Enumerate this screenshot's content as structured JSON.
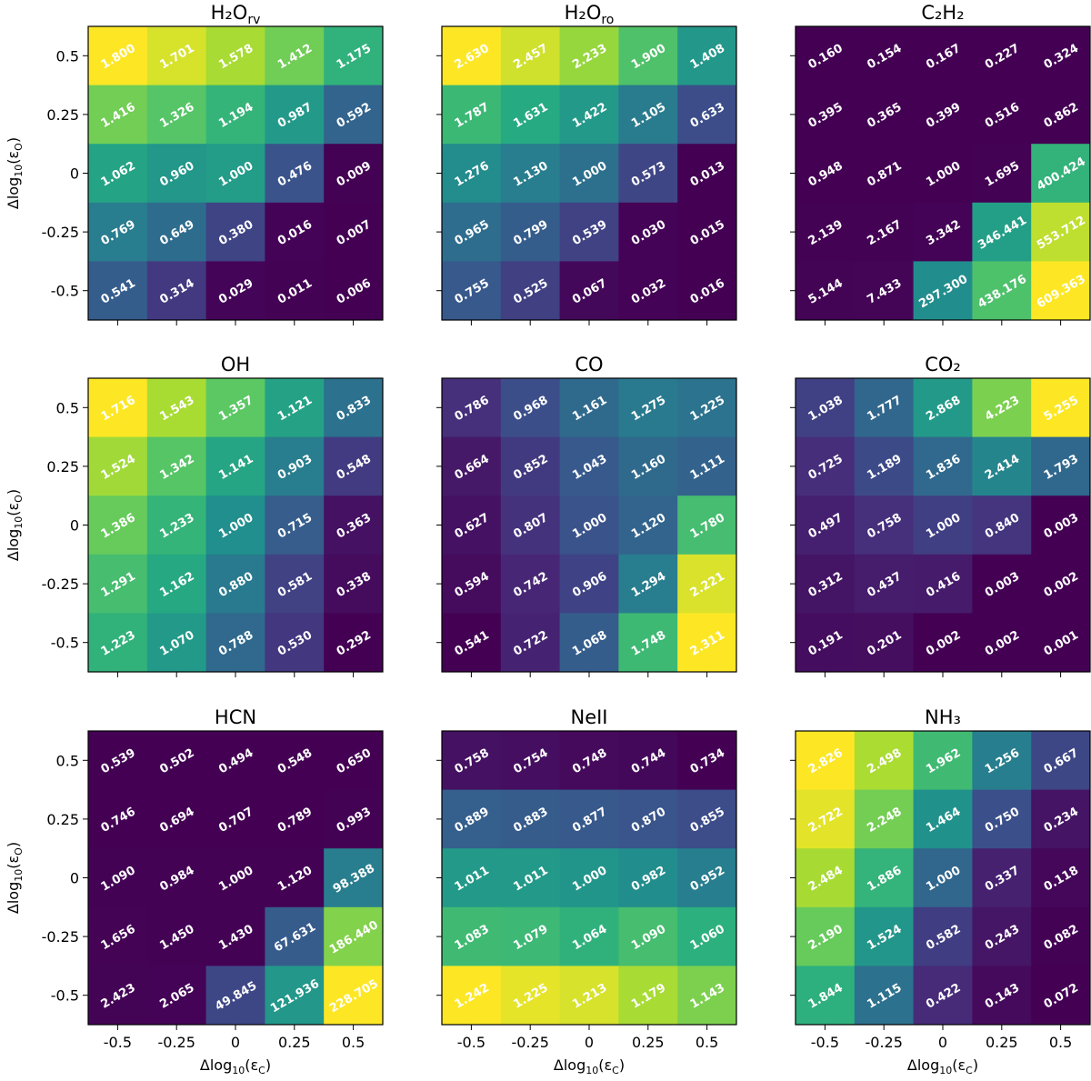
{
  "chart_data": {
    "type": "heatmap",
    "colormap": "viridis",
    "xlabel": "Δlog₁₀(ε_C)",
    "ylabel": "Δlog₁₀(ε_O)",
    "x_categories": [
      "-0.5",
      "-0.25",
      "0",
      "0.25",
      "0.5"
    ],
    "y_categories": [
      "0.5",
      "0.25",
      "0",
      "-0.25",
      "-0.5"
    ],
    "panels": [
      {
        "title": "H₂O",
        "title_sub": "rv",
        "values": [
          [
            "1.800",
            "1.701",
            "1.578",
            "1.412",
            "1.175"
          ],
          [
            "1.416",
            "1.326",
            "1.194",
            "0.987",
            "0.592"
          ],
          [
            "1.062",
            "0.960",
            "1.000",
            "0.476",
            "0.009"
          ],
          [
            "0.769",
            "0.649",
            "0.380",
            "0.016",
            "0.007"
          ],
          [
            "0.541",
            "0.314",
            "0.029",
            "0.011",
            "0.006"
          ]
        ]
      },
      {
        "title": "H₂O",
        "title_sub": "ro",
        "values": [
          [
            "2.630",
            "2.457",
            "2.233",
            "1.900",
            "1.408"
          ],
          [
            "1.787",
            "1.631",
            "1.422",
            "1.105",
            "0.633"
          ],
          [
            "1.276",
            "1.130",
            "1.000",
            "0.573",
            "0.013"
          ],
          [
            "0.965",
            "0.799",
            "0.539",
            "0.030",
            "0.015"
          ],
          [
            "0.755",
            "0.525",
            "0.067",
            "0.032",
            "0.016"
          ]
        ]
      },
      {
        "title": "C₂H₂",
        "title_sub": "",
        "values": [
          [
            "0.160",
            "0.154",
            "0.167",
            "0.227",
            "0.324"
          ],
          [
            "0.395",
            "0.365",
            "0.399",
            "0.516",
            "0.862"
          ],
          [
            "0.948",
            "0.871",
            "1.000",
            "1.695",
            "400.424"
          ],
          [
            "2.139",
            "2.167",
            "3.342",
            "346.441",
            "553.712"
          ],
          [
            "5.144",
            "7.433",
            "297.300",
            "438.176",
            "609.363"
          ]
        ]
      },
      {
        "title": "OH",
        "title_sub": "",
        "values": [
          [
            "1.716",
            "1.543",
            "1.357",
            "1.121",
            "0.833"
          ],
          [
            "1.524",
            "1.342",
            "1.141",
            "0.903",
            "0.548"
          ],
          [
            "1.386",
            "1.233",
            "1.000",
            "0.715",
            "0.363"
          ],
          [
            "1.291",
            "1.162",
            "0.880",
            "0.581",
            "0.338"
          ],
          [
            "1.223",
            "1.070",
            "0.788",
            "0.530",
            "0.292"
          ]
        ]
      },
      {
        "title": "CO",
        "title_sub": "",
        "values": [
          [
            "0.786",
            "0.968",
            "1.161",
            "1.275",
            "1.225"
          ],
          [
            "0.664",
            "0.852",
            "1.043",
            "1.160",
            "1.111"
          ],
          [
            "0.627",
            "0.807",
            "1.000",
            "1.120",
            "1.780"
          ],
          [
            "0.594",
            "0.742",
            "0.906",
            "1.294",
            "2.221"
          ],
          [
            "0.541",
            "0.722",
            "1.068",
            "1.748",
            "2.311"
          ]
        ]
      },
      {
        "title": "CO₂",
        "title_sub": "",
        "values": [
          [
            "1.038",
            "1.777",
            "2.868",
            "4.223",
            "5.255"
          ],
          [
            "0.725",
            "1.189",
            "1.836",
            "2.414",
            "1.793"
          ],
          [
            "0.497",
            "0.758",
            "1.000",
            "0.840",
            "0.003"
          ],
          [
            "0.312",
            "0.437",
            "0.416",
            "0.003",
            "0.002"
          ],
          [
            "0.191",
            "0.201",
            "0.002",
            "0.002",
            "0.001"
          ]
        ]
      },
      {
        "title": "HCN",
        "title_sub": "",
        "values": [
          [
            "0.539",
            "0.502",
            "0.494",
            "0.548",
            "0.650"
          ],
          [
            "0.746",
            "0.694",
            "0.707",
            "0.789",
            "0.993"
          ],
          [
            "1.090",
            "0.984",
            "1.000",
            "1.120",
            "98.388"
          ],
          [
            "1.656",
            "1.450",
            "1.430",
            "67.631",
            "186.440"
          ],
          [
            "2.423",
            "2.065",
            "49.845",
            "121.936",
            "228.705"
          ]
        ]
      },
      {
        "title": "NeII",
        "title_sub": "",
        "values": [
          [
            "0.758",
            "0.754",
            "0.748",
            "0.744",
            "0.734"
          ],
          [
            "0.889",
            "0.883",
            "0.877",
            "0.870",
            "0.855"
          ],
          [
            "1.011",
            "1.011",
            "1.000",
            "0.982",
            "0.952"
          ],
          [
            "1.083",
            "1.079",
            "1.064",
            "1.090",
            "1.060"
          ],
          [
            "1.242",
            "1.225",
            "1.213",
            "1.179",
            "1.143"
          ]
        ]
      },
      {
        "title": "NH₃",
        "title_sub": "",
        "values": [
          [
            "2.826",
            "2.498",
            "1.962",
            "1.256",
            "0.667"
          ],
          [
            "2.722",
            "2.248",
            "1.464",
            "0.750",
            "0.234"
          ],
          [
            "2.484",
            "1.886",
            "1.000",
            "0.337",
            "0.118"
          ],
          [
            "2.190",
            "1.524",
            "0.582",
            "0.243",
            "0.082"
          ],
          [
            "1.844",
            "1.115",
            "0.422",
            "0.143",
            "0.072"
          ]
        ]
      }
    ]
  }
}
